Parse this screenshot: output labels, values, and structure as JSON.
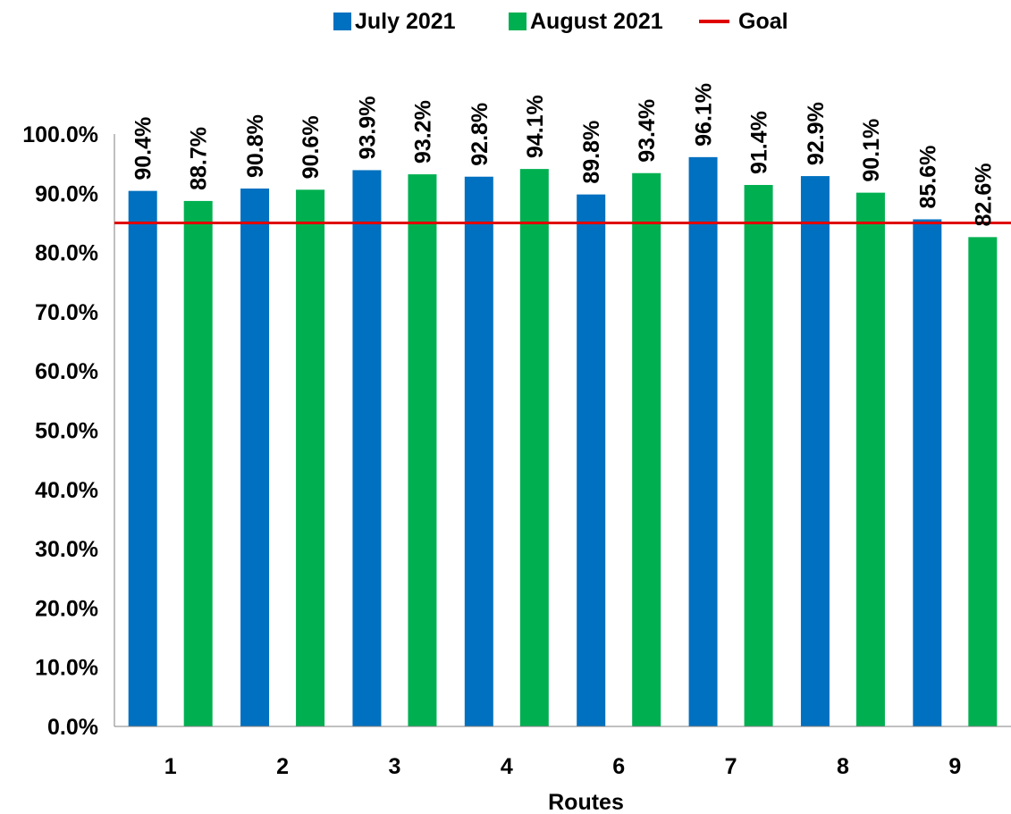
{
  "chart_data": {
    "type": "bar",
    "categories": [
      "1",
      "2",
      "3",
      "4",
      "6",
      "7",
      "8",
      "9"
    ],
    "series": [
      {
        "name": "July 2021",
        "color": "#0070C0",
        "values": [
          90.4,
          90.8,
          93.9,
          92.8,
          89.8,
          96.1,
          92.9,
          85.6
        ],
        "labels": [
          "90.4%",
          "90.8%",
          "93.9%",
          "92.8%",
          "89.8%",
          "96.1%",
          "92.9%",
          "85.6%"
        ]
      },
      {
        "name": "August 2021",
        "color": "#00B050",
        "values": [
          88.7,
          90.6,
          93.2,
          94.1,
          93.4,
          91.4,
          90.1,
          82.6
        ],
        "labels": [
          "88.7%",
          "90.6%",
          "93.2%",
          "94.1%",
          "93.4%",
          "91.4%",
          "90.1%",
          "82.6%"
        ]
      }
    ],
    "goal": {
      "name": "Goal",
      "value": 85,
      "color": "#E00000"
    },
    "xlabel": "Routes",
    "ylabel": "",
    "ylim": [
      0,
      100
    ],
    "yticks": [
      "0.0%",
      "10.0%",
      "20.0%",
      "30.0%",
      "40.0%",
      "50.0%",
      "60.0%",
      "70.0%",
      "80.0%",
      "90.0%",
      "100.0%"
    ],
    "grid": false,
    "legend_position": "top"
  },
  "legend": {
    "july": "July 2021",
    "august": "August 2021",
    "goal": "Goal"
  }
}
